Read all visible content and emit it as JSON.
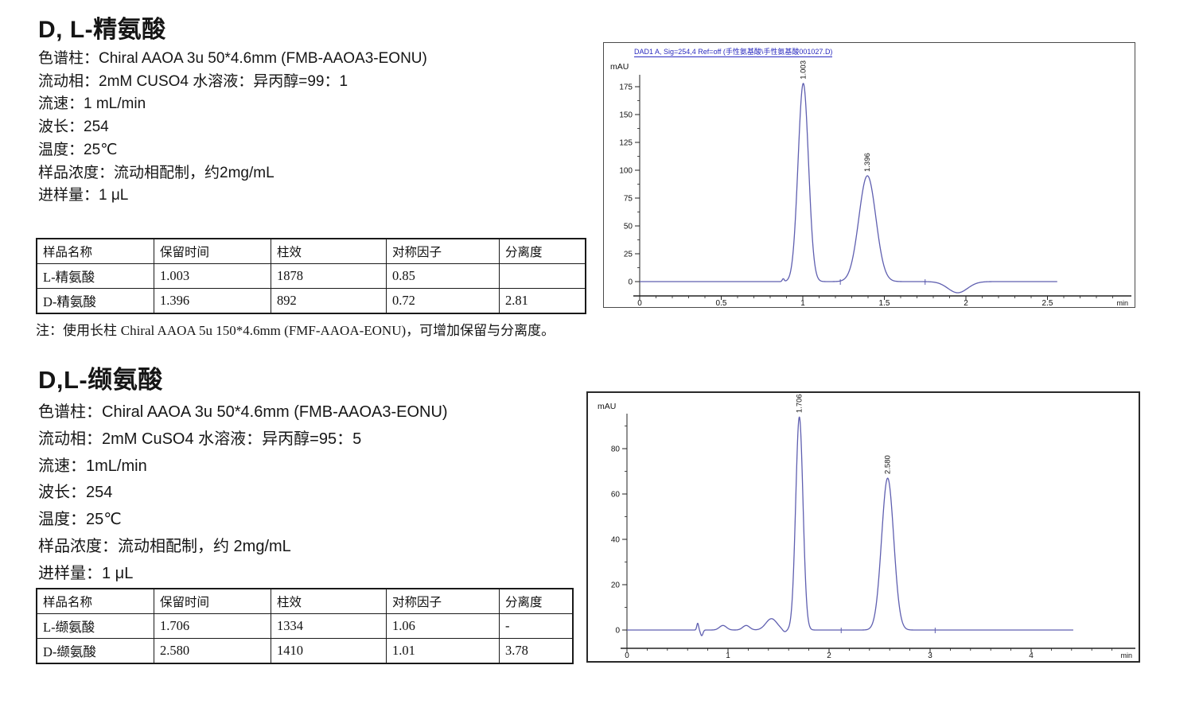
{
  "page": {
    "background": "#ffffff"
  },
  "sections": [
    {
      "title": "D, L-精氨酸",
      "params": [
        "色谱柱：Chiral AAOA 3u 50*4.6mm (FMB-AAOA3-EONU)",
        "流动相：2mM CUSO4 水溶液：异丙醇=99：1",
        "流速：1 mL/min",
        "波长：254",
        "温度：25℃",
        "样品浓度：流动相配制，约2mg/mL",
        "进样量：1 μL"
      ],
      "table": {
        "headers": [
          "样品名称",
          "保留时间",
          "柱效",
          "对称因子",
          "分离度"
        ],
        "rows": [
          [
            "L-精氨酸",
            "1.003",
            "1878",
            "0.85",
            ""
          ],
          [
            "D-精氨酸",
            "1.396",
            "892",
            "0.72",
            "2.81"
          ]
        ]
      },
      "note": {
        "prefix": "注：使用长柱 ",
        "latin": "Chiral AAOA 5u 150*4.6mm (FMF-AAOA-EONU)",
        "suffix": "，可增加保留与分离度。"
      }
    },
    {
      "title": "D,L-缬氨酸",
      "params": [
        "色谱柱：Chiral AAOA 3u 50*4.6mm (FMB-AAOA3-EONU)",
        "流动相：2mM CuSO4 水溶液：异丙醇=95：5",
        "流速：1mL/min",
        "波长：254",
        "温度：25℃",
        "样品浓度：流动相配制，约 2mg/mL",
        "进样量：1 μL"
      ],
      "table": {
        "headers": [
          "样品名称",
          "保留时间",
          "柱效",
          "对称因子",
          "分离度"
        ],
        "rows": [
          [
            "L-缬氨酸",
            "1.706",
            "1334",
            "1.06",
            "-"
          ],
          [
            "D-缬氨酸",
            "2.580",
            "1410",
            "1.01",
            "3.78"
          ]
        ]
      }
    }
  ],
  "chart_data": [
    {
      "type": "line",
      "title": "DAD1 A, Sig=254,4 Ref=off (手性氨基酸\\手性氨基酸001027.D)",
      "xlabel": "min",
      "ylabel": "mAU",
      "xlim": [
        0,
        3.0
      ],
      "ylim": [
        -18,
        196
      ],
      "x_ticks": [
        0,
        0.5,
        1,
        1.5,
        2,
        2.5
      ],
      "x_minor_step": 0.1,
      "y_ticks": [
        0,
        25,
        50,
        75,
        100,
        125,
        150,
        175
      ],
      "grid": false,
      "line_color": "#5f5fb0",
      "title_color": "#2b2bbf",
      "peaks": [
        {
          "time": 1.003,
          "height": 178,
          "sigma": 0.032,
          "label": "1.003"
        },
        {
          "time": 1.396,
          "height": 95,
          "sigma": 0.052,
          "label": "1.396"
        }
      ],
      "features": [
        {
          "time": 0.88,
          "height": 2.5,
          "sigma": 0.006
        },
        {
          "time": 1.95,
          "height": -10,
          "sigma": 0.06
        }
      ],
      "markers": [
        1.23,
        1.75
      ],
      "trace_range": [
        0,
        2.56
      ]
    },
    {
      "type": "line",
      "title": "",
      "xlabel": "min",
      "ylabel": "mAU",
      "xlim": [
        0,
        5.0
      ],
      "ylim": [
        -10,
        104
      ],
      "x_ticks": [
        0,
        1,
        2,
        3,
        4
      ],
      "x_minor_step": 0.2,
      "y_ticks": [
        0,
        20,
        40,
        60,
        80
      ],
      "grid": false,
      "line_color": "#5f5fb0",
      "title_color": "#2b2bbf",
      "peaks": [
        {
          "time": 1.706,
          "height": 94,
          "sigma": 0.036,
          "label": "1.706"
        },
        {
          "time": 2.58,
          "height": 67,
          "sigma": 0.06,
          "label": "2.580"
        }
      ],
      "features": [
        {
          "time": 0.7,
          "height": 3,
          "sigma": 0.009
        },
        {
          "time": 0.74,
          "height": -2.5,
          "sigma": 0.012
        },
        {
          "time": 0.95,
          "height": 2,
          "sigma": 0.035
        },
        {
          "time": 1.18,
          "height": 2,
          "sigma": 0.035
        },
        {
          "time": 1.43,
          "height": 5,
          "sigma": 0.055
        },
        {
          "time": 1.56,
          "height": -1,
          "sigma": 0.02
        }
      ],
      "markers": [
        2.12,
        3.05
      ],
      "trace_range": [
        0,
        4.42
      ]
    }
  ]
}
